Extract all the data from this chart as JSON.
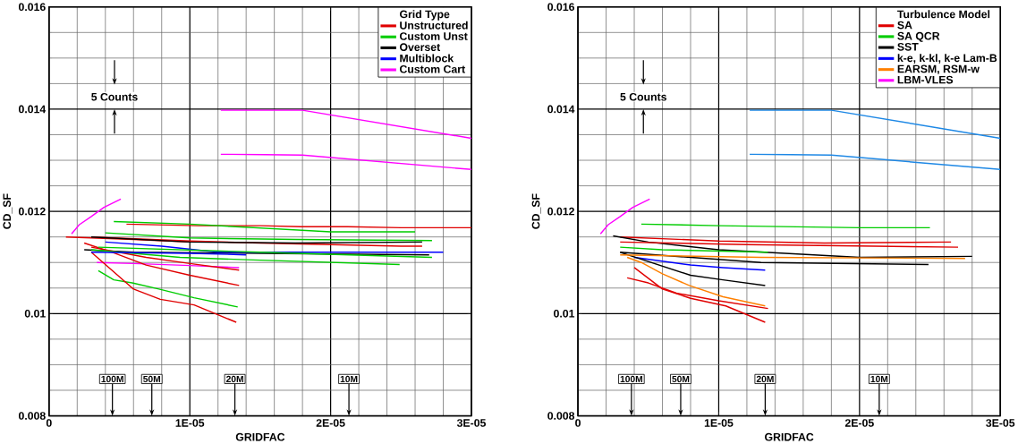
{
  "chart_data": [
    {
      "type": "line",
      "xlabel": "GRIDFAC",
      "ylabel": "CD_SF",
      "legend_title": "Grid Type",
      "legend": "top right",
      "grid": true,
      "xlim": [
        0,
        3e-05
      ],
      "ylim": [
        0.008,
        0.016
      ],
      "xticks": [
        0,
        {
          "value": 1e-05,
          "label": "1E-05"
        },
        {
          "value": 2e-05,
          "label": "2E-05"
        },
        {
          "value": 3e-05,
          "label": "3E-05"
        }
      ],
      "yticks": [
        0.008,
        0.01,
        0.012,
        0.014,
        0.016
      ],
      "annotations": [
        "5 Counts",
        {
          "text": "100M",
          "x": 4.5e-06,
          "y": 0.00872
        },
        {
          "text": "50M",
          "x": 7.3e-06,
          "y": 0.00872
        },
        {
          "text": "20M",
          "x": 1.32e-05,
          "y": 0.00872
        },
        {
          "text": "10M",
          "x": 2.13e-05,
          "y": 0.00872
        }
      ],
      "series": [
        {
          "name": "Unstructured",
          "color": "#e00000",
          "x": [
            5.5e-06,
            1.06e-05,
            1.25e-05,
            1.5e-05,
            1.79e-05,
            2.12e-05,
            2.5e-05,
            3e-05
          ],
          "values": [
            0.01175,
            0.01172,
            0.01172,
            0.01172,
            0.0117,
            0.0117,
            0.01168,
            0.01168
          ]
        },
        {
          "name": "Custom Unst",
          "color": "#00cc00",
          "x": [
            3.5e-06,
            4.6e-06,
            5.9e-06,
            7.8e-06,
            1.03e-05,
            1.34e-05
          ],
          "values": [
            0.01084,
            0.01066,
            0.0106,
            0.01048,
            0.01031,
            0.01013
          ]
        },
        {
          "name": "Overset",
          "color": "#000000",
          "x": [
            2.5e-06,
            6e-06,
            1.5e-05,
            2.7e-05
          ],
          "values": [
            0.01125,
            0.0112,
            0.01118,
            0.01115
          ]
        },
        {
          "name": "Multiblock",
          "color": "#0000ff",
          "x": [
            4e-06,
            8e-06,
            1.2e-05,
            2.8e-05
          ],
          "values": [
            0.0114,
            0.01132,
            0.0112,
            0.0112
          ]
        },
        {
          "name": "Custom Cart",
          "color": "#ff00ff",
          "x": [
            1.6e-06,
            2.15e-06,
            3e-06,
            3.9e-06,
            5.1e-06
          ],
          "values": [
            0.01156,
            0.01174,
            0.0119,
            0.01208,
            0.01224
          ]
        },
        {
          "color": "#ff00ff",
          "x": [
            1.22e-05,
            1.8e-05,
            3e-05
          ],
          "values": [
            0.01398,
            0.01398,
            0.01343
          ]
        },
        {
          "color": "#ff00ff",
          "x": [
            1.22e-05,
            1.8e-05,
            3e-05
          ],
          "values": [
            0.01312,
            0.0131,
            0.01282
          ]
        },
        {
          "color": "#ff00ff",
          "x": [
            3.4e-06,
            6e-06,
            1e-05,
            1.35e-05
          ],
          "values": [
            0.011,
            0.01098,
            0.01094,
            0.0109
          ]
        },
        {
          "color": "#e00000",
          "x": [
            3e-06,
            1e-05,
            1.5e-05,
            2e-05,
            2.5e-05,
            2.65e-05
          ],
          "values": [
            0.0115,
            0.01142,
            0.01138,
            0.01135,
            0.01132,
            0.01132
          ]
        },
        {
          "color": "#e00000",
          "x": [
            3e-06,
            6e-06,
            7.9e-06,
            1.03e-05,
            1.33e-05
          ],
          "values": [
            0.0112,
            0.01048,
            0.01028,
            0.01017,
            0.00983
          ]
        },
        {
          "color": "#e00000",
          "x": [
            2.5e-06,
            4.5e-06,
            6.9e-06,
            1e-05,
            1.35e-05
          ],
          "values": [
            0.01138,
            0.0112,
            0.01095,
            0.01075,
            0.01055
          ]
        },
        {
          "color": "#e00000",
          "x": [
            3e-06,
            6.9e-06,
            1e-05,
            1.35e-05
          ],
          "values": [
            0.0113,
            0.0111,
            0.01098,
            0.01085
          ]
        },
        {
          "color": "#e00000",
          "x": [
            1.2e-06,
            3e-06,
            6e-06,
            1e-05
          ],
          "values": [
            0.0115,
            0.01148,
            0.01145,
            0.0114
          ]
        },
        {
          "color": "#00cc00",
          "x": [
            4.6e-06,
            1e-05,
            2e-05,
            2.6e-05
          ],
          "values": [
            0.0118,
            0.01175,
            0.0116,
            0.0116
          ]
        },
        {
          "color": "#00cc00",
          "x": [
            3e-06,
            9.3e-06,
            1.45e-05,
            2.49e-05
          ],
          "values": [
            0.01125,
            0.0111,
            0.01105,
            0.01096
          ]
        },
        {
          "color": "#00cc00",
          "x": [
            4e-06,
            1e-05,
            1.75e-05,
            2.72e-05
          ],
          "values": [
            0.01158,
            0.01148,
            0.01145,
            0.01143
          ]
        },
        {
          "color": "#00cc00",
          "x": [
            3.5e-06,
            1.5e-05,
            2.72e-05
          ],
          "values": [
            0.0113,
            0.0112,
            0.0111
          ]
        },
        {
          "color": "#000000",
          "x": [
            3e-06,
            1e-05,
            1.75e-05,
            2.65e-05
          ],
          "values": [
            0.0115,
            0.0114,
            0.01138,
            0.0114
          ]
        },
        {
          "color": "#0000ff",
          "x": [
            3e-06,
            1e-05,
            1.4e-05
          ],
          "values": [
            0.0112,
            0.01118,
            0.01115
          ]
        }
      ]
    },
    {
      "type": "line",
      "xlabel": "GRIDFAC",
      "ylabel": "CD_SF",
      "legend_title": "Turbulence Model",
      "legend": "top right",
      "grid": true,
      "xlim": [
        0,
        3e-05
      ],
      "ylim": [
        0.008,
        0.016
      ],
      "xticks": [
        0,
        {
          "value": 1e-05,
          "label": "1E-05"
        },
        {
          "value": 2e-05,
          "label": "2E-05"
        },
        {
          "value": 3e-05,
          "label": "3E-05"
        }
      ],
      "yticks": [
        0.008,
        0.01,
        0.012,
        0.014,
        0.016
      ],
      "annotations": [
        "5 Counts",
        {
          "text": "100M",
          "x": 3.8e-06,
          "y": 0.00872
        },
        {
          "text": "50M",
          "x": 7.3e-06,
          "y": 0.00872
        },
        {
          "text": "20M",
          "x": 1.33e-05,
          "y": 0.00872
        },
        {
          "text": "10M",
          "x": 2.14e-05,
          "y": 0.00872
        }
      ],
      "series": [
        {
          "name": "SA",
          "color": "#e00000",
          "x": [
            3e-06,
            1e-05,
            1.75e-05,
            2.65e-05
          ],
          "values": [
            0.0115,
            0.01142,
            0.01138,
            0.0114
          ]
        },
        {
          "name": "SA QCR",
          "color": "#00cc00",
          "x": [
            4.5e-06,
            1e-05,
            1.5e-05,
            2e-05,
            2.5e-05
          ],
          "values": [
            0.01175,
            0.01172,
            0.0117,
            0.01168,
            0.01168
          ]
        },
        {
          "name": "SST",
          "color": "#000000",
          "x": [
            2.5e-06,
            5e-06,
            1e-05,
            2e-05,
            2.8e-05
          ],
          "values": [
            0.01152,
            0.0114,
            0.01125,
            0.0111,
            0.01112
          ]
        },
        {
          "name": "k-e, k-kl, k-e Lam-B",
          "color": "#0000ff",
          "x": [
            4e-06,
            8e-06,
            1.03e-05,
            1.33e-05
          ],
          "values": [
            0.0111,
            0.01095,
            0.0109,
            0.01085
          ]
        },
        {
          "name": "EARSM, RSM-w",
          "color": "#ff8000",
          "x": [
            3.5e-06,
            4.5e-06,
            6e-06,
            7.9e-06,
            1.03e-05,
            1.33e-05
          ],
          "values": [
            0.0111,
            0.011,
            0.01078,
            0.01055,
            0.01033,
            0.01015
          ]
        },
        {
          "name": "LBM-VLES",
          "color": "#ff00ff",
          "x": [
            1.6e-06,
            2.15e-06,
            3e-06,
            3.9e-06,
            5.1e-06
          ],
          "values": [
            0.01156,
            0.01174,
            0.0119,
            0.01208,
            0.01224
          ]
        },
        {
          "color": "#1e88e5",
          "x": [
            1.22e-05,
            1.8e-05,
            3e-05
          ],
          "values": [
            0.01398,
            0.01398,
            0.01343
          ]
        },
        {
          "color": "#1e88e5",
          "x": [
            1.22e-05,
            1.8e-05,
            3e-05
          ],
          "values": [
            0.01312,
            0.0131,
            0.01282
          ]
        },
        {
          "color": "#00cc00",
          "x": [
            3e-06,
            6e-06,
            1.35e-05
          ],
          "values": [
            0.0113,
            0.01125,
            0.0112
          ]
        },
        {
          "color": "#e00000",
          "x": [
            3e-06,
            1.2e-05,
            2.7e-05
          ],
          "values": [
            0.0114,
            0.01135,
            0.0113
          ]
        },
        {
          "color": "#e00000",
          "x": [
            3.5e-06,
            5e-06,
            7e-06,
            1e-05,
            1.35e-05
          ],
          "values": [
            0.0107,
            0.0106,
            0.0104,
            0.01025,
            0.0101
          ]
        },
        {
          "color": "#e00000",
          "x": [
            4e-06,
            6e-06,
            8e-06,
            1.05e-05,
            1.33e-05
          ],
          "values": [
            0.0109,
            0.01048,
            0.0103,
            0.01015,
            0.00983
          ]
        },
        {
          "color": "#000000",
          "x": [
            3e-06,
            8e-06,
            1.03e-05,
            1.33e-05
          ],
          "values": [
            0.0112,
            0.01075,
            0.01066,
            0.01055
          ]
        },
        {
          "color": "#000000",
          "x": [
            3e-06,
            1.3e-05,
            2.49e-05
          ],
          "values": [
            0.0112,
            0.011,
            0.01096
          ]
        },
        {
          "color": "#ff8000",
          "x": [
            3e-06,
            1.3e-05,
            2.75e-05
          ],
          "values": [
            0.01115,
            0.0111,
            0.01108
          ]
        }
      ]
    }
  ]
}
